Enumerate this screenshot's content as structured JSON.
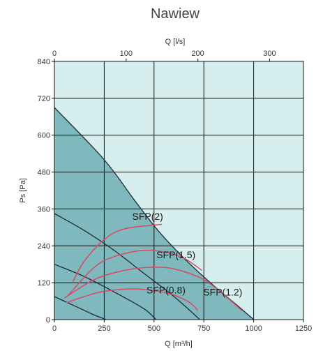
{
  "chart_data": {
    "type": "line",
    "title": "Nawiew",
    "xlabel": "Q [m³/h]",
    "x2label": "Q [l/s]",
    "ylabel": "Ps [Pa]",
    "xlim": [
      0,
      1250
    ],
    "ylim": [
      0,
      840
    ],
    "x_ticks": [
      0,
      250,
      500,
      750,
      1000,
      1250
    ],
    "x2_ticks": [
      0,
      100,
      200,
      300
    ],
    "y_ticks": [
      0,
      120,
      240,
      360,
      480,
      600,
      720,
      840
    ],
    "grid": true,
    "colors": {
      "background": "#d7eeee",
      "region_fill": "#7fb9bd",
      "fan_curve": "#1e2a3a",
      "sfp_curve": "#d84a62",
      "grid": "#111111"
    },
    "fan_curves": [
      {
        "points": [
          [
            0,
            690
          ],
          [
            250,
            520
          ],
          [
            400,
            390
          ],
          [
            520,
            290
          ],
          [
            650,
            200
          ],
          [
            800,
            110
          ],
          [
            920,
            45
          ],
          [
            1000,
            0
          ]
        ]
      },
      {
        "points": [
          [
            0,
            345
          ],
          [
            150,
            290
          ],
          [
            300,
            225
          ],
          [
            450,
            150
          ],
          [
            600,
            75
          ],
          [
            730,
            0
          ]
        ]
      },
      {
        "points": [
          [
            0,
            180
          ],
          [
            150,
            140
          ],
          [
            300,
            90
          ],
          [
            450,
            35
          ],
          [
            510,
            0
          ]
        ]
      },
      {
        "points": [
          [
            0,
            75
          ],
          [
            100,
            45
          ],
          [
            200,
            15
          ],
          [
            260,
            0
          ]
        ]
      }
    ],
    "sfp_curves": [
      {
        "label": "SFP(2)",
        "points": [
          [
            90,
            120
          ],
          [
            150,
            190
          ],
          [
            250,
            260
          ],
          [
            350,
            295
          ],
          [
            540,
            310
          ]
        ]
      },
      {
        "label": "SFP(1.5)",
        "points": [
          [
            70,
            80
          ],
          [
            200,
            170
          ],
          [
            300,
            205
          ],
          [
            440,
            225
          ],
          [
            550,
            220
          ],
          [
            650,
            200
          ],
          [
            740,
            160
          ]
        ]
      },
      {
        "label": "SFP(1.2)",
        "points": [
          [
            50,
            70
          ],
          [
            200,
            130
          ],
          [
            350,
            160
          ],
          [
            480,
            170
          ],
          [
            600,
            165
          ],
          [
            750,
            130
          ],
          [
            870,
            70
          ],
          [
            940,
            30
          ]
        ]
      },
      {
        "label": "SFP(0.8)",
        "points": [
          [
            60,
            55
          ],
          [
            150,
            75
          ],
          [
            250,
            92
          ],
          [
            400,
            100
          ],
          [
            520,
            92
          ],
          [
            600,
            80
          ],
          [
            680,
            55
          ],
          [
            720,
            30
          ]
        ]
      }
    ]
  }
}
